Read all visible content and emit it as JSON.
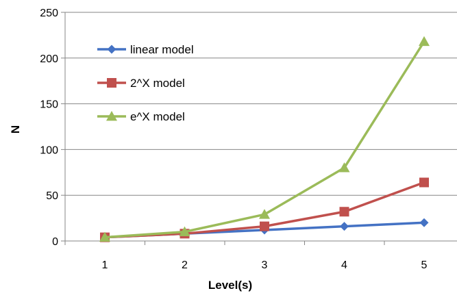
{
  "chart_data": {
    "type": "line",
    "title": "",
    "xlabel": "Level(s)",
    "ylabel": "N",
    "x": [
      1,
      2,
      3,
      4,
      5
    ],
    "xticks": [
      "1",
      "2",
      "3",
      "4",
      "5"
    ],
    "ylim": [
      0,
      250
    ],
    "yticks": [
      "0",
      "50",
      "100",
      "150",
      "200",
      "250"
    ],
    "grid": "horizontal",
    "legend_placement": "top-left",
    "series": [
      {
        "name": "linear model",
        "values": [
          4,
          8,
          12,
          16,
          20
        ],
        "color": "#4472C4",
        "marker": "diamond"
      },
      {
        "name": "2^X model",
        "values": [
          4,
          8,
          16,
          32,
          64
        ],
        "color": "#C0504D",
        "marker": "square"
      },
      {
        "name": "e^X model",
        "values": [
          4,
          10,
          29,
          80,
          218
        ],
        "color": "#9BBB59",
        "marker": "triangle"
      }
    ]
  }
}
